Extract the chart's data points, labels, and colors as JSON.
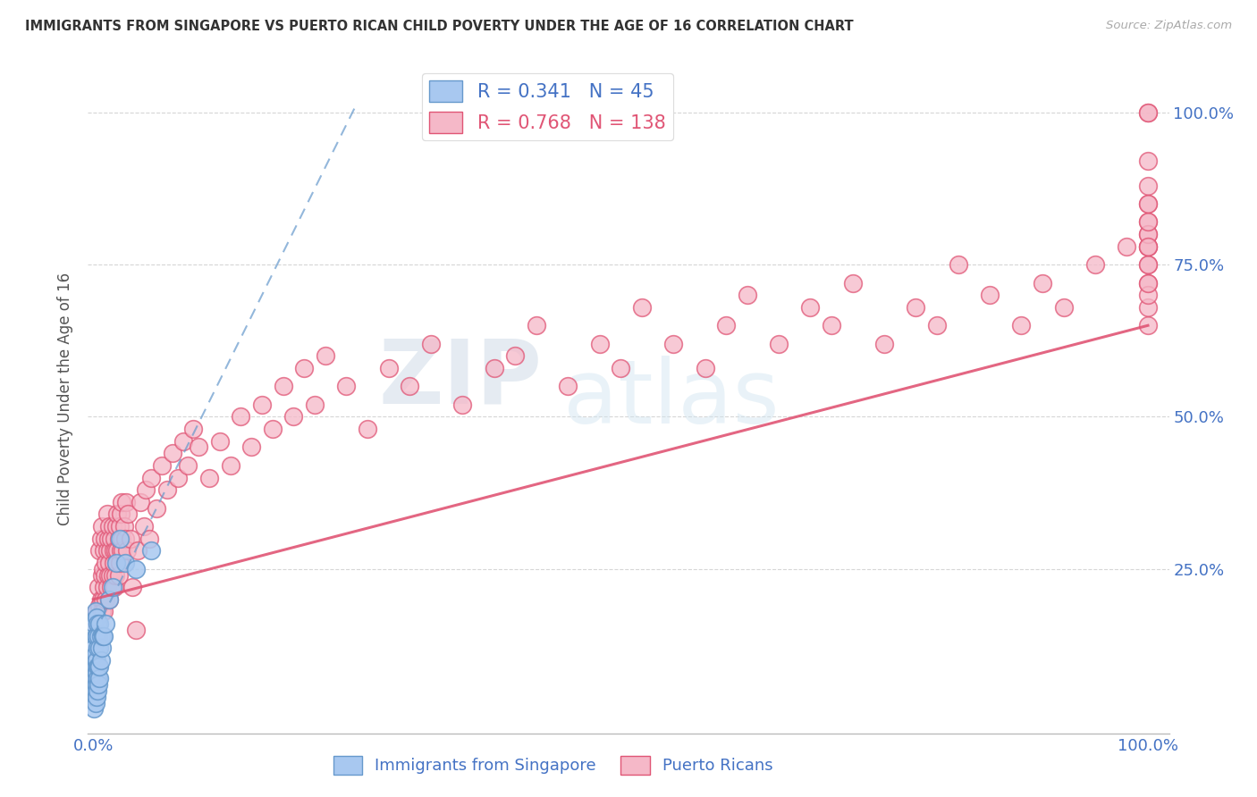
{
  "title": "IMMIGRANTS FROM SINGAPORE VS PUERTO RICAN CHILD POVERTY UNDER THE AGE OF 16 CORRELATION CHART",
  "source": "Source: ZipAtlas.com",
  "ylabel": "Child Poverty Under the Age of 16",
  "legend_blue_r": "0.341",
  "legend_blue_n": "45",
  "legend_pink_r": "0.768",
  "legend_pink_n": "138",
  "blue_color": "#a8c8f0",
  "pink_color": "#f5b8c8",
  "blue_line_color": "#6699cc",
  "pink_line_color": "#e05575",
  "title_color": "#333333",
  "axis_label_color": "#4472c4",
  "grid_color": "#cccccc",
  "background_color": "#ffffff",
  "watermark_zip": "ZIP",
  "watermark_atlas": "atlas",
  "blue_points_x": [
    0.001,
    0.001,
    0.001,
    0.001,
    0.001,
    0.001,
    0.001,
    0.002,
    0.002,
    0.002,
    0.002,
    0.002,
    0.002,
    0.002,
    0.003,
    0.003,
    0.003,
    0.003,
    0.003,
    0.003,
    0.004,
    0.004,
    0.004,
    0.004,
    0.004,
    0.005,
    0.005,
    0.005,
    0.006,
    0.006,
    0.006,
    0.006,
    0.007,
    0.007,
    0.008,
    0.009,
    0.01,
    0.012,
    0.015,
    0.018,
    0.022,
    0.025,
    0.03,
    0.04,
    0.055
  ],
  "blue_points_y": [
    0.02,
    0.04,
    0.06,
    0.08,
    0.1,
    0.12,
    0.16,
    0.03,
    0.05,
    0.07,
    0.09,
    0.11,
    0.14,
    0.18,
    0.04,
    0.06,
    0.08,
    0.1,
    0.14,
    0.17,
    0.05,
    0.07,
    0.09,
    0.12,
    0.16,
    0.06,
    0.09,
    0.14,
    0.07,
    0.09,
    0.12,
    0.16,
    0.1,
    0.14,
    0.12,
    0.14,
    0.14,
    0.16,
    0.2,
    0.22,
    0.26,
    0.3,
    0.26,
    0.25,
    0.28
  ],
  "pink_points_x": [
    0.003,
    0.004,
    0.005,
    0.006,
    0.006,
    0.007,
    0.007,
    0.008,
    0.008,
    0.008,
    0.009,
    0.009,
    0.01,
    0.01,
    0.01,
    0.011,
    0.011,
    0.012,
    0.012,
    0.013,
    0.013,
    0.013,
    0.014,
    0.014,
    0.015,
    0.015,
    0.015,
    0.016,
    0.016,
    0.017,
    0.017,
    0.018,
    0.018,
    0.019,
    0.019,
    0.02,
    0.02,
    0.021,
    0.021,
    0.022,
    0.022,
    0.023,
    0.023,
    0.024,
    0.024,
    0.025,
    0.025,
    0.026,
    0.026,
    0.027,
    0.027,
    0.028,
    0.029,
    0.03,
    0.031,
    0.032,
    0.033,
    0.035,
    0.037,
    0.04,
    0.042,
    0.045,
    0.048,
    0.05,
    0.053,
    0.055,
    0.06,
    0.065,
    0.07,
    0.075,
    0.08,
    0.085,
    0.09,
    0.095,
    0.1,
    0.11,
    0.12,
    0.13,
    0.14,
    0.15,
    0.16,
    0.17,
    0.18,
    0.19,
    0.2,
    0.21,
    0.22,
    0.24,
    0.26,
    0.28,
    0.3,
    0.32,
    0.35,
    0.38,
    0.4,
    0.42,
    0.45,
    0.48,
    0.5,
    0.52,
    0.55,
    0.58,
    0.6,
    0.62,
    0.65,
    0.68,
    0.7,
    0.72,
    0.75,
    0.78,
    0.8,
    0.82,
    0.85,
    0.88,
    0.9,
    0.92,
    0.95,
    0.98,
    1.0,
    1.0,
    1.0,
    1.0,
    1.0,
    1.0,
    1.0,
    1.0,
    1.0,
    1.0,
    1.0,
    1.0,
    1.0,
    1.0,
    1.0,
    1.0,
    1.0,
    1.0,
    1.0,
    1.0
  ],
  "pink_points_y": [
    0.18,
    0.16,
    0.22,
    0.19,
    0.28,
    0.2,
    0.3,
    0.18,
    0.24,
    0.32,
    0.2,
    0.25,
    0.18,
    0.22,
    0.28,
    0.24,
    0.3,
    0.2,
    0.26,
    0.22,
    0.28,
    0.34,
    0.24,
    0.3,
    0.2,
    0.26,
    0.32,
    0.24,
    0.28,
    0.22,
    0.3,
    0.24,
    0.32,
    0.26,
    0.28,
    0.22,
    0.3,
    0.24,
    0.28,
    0.26,
    0.32,
    0.28,
    0.34,
    0.24,
    0.3,
    0.26,
    0.32,
    0.28,
    0.34,
    0.3,
    0.36,
    0.28,
    0.32,
    0.3,
    0.36,
    0.28,
    0.34,
    0.3,
    0.22,
    0.15,
    0.28,
    0.36,
    0.32,
    0.38,
    0.3,
    0.4,
    0.35,
    0.42,
    0.38,
    0.44,
    0.4,
    0.46,
    0.42,
    0.48,
    0.45,
    0.4,
    0.46,
    0.42,
    0.5,
    0.45,
    0.52,
    0.48,
    0.55,
    0.5,
    0.58,
    0.52,
    0.6,
    0.55,
    0.48,
    0.58,
    0.55,
    0.62,
    0.52,
    0.58,
    0.6,
    0.65,
    0.55,
    0.62,
    0.58,
    0.68,
    0.62,
    0.58,
    0.65,
    0.7,
    0.62,
    0.68,
    0.65,
    0.72,
    0.62,
    0.68,
    0.65,
    0.75,
    0.7,
    0.65,
    0.72,
    0.68,
    0.75,
    0.78,
    0.65,
    0.72,
    0.68,
    0.75,
    0.7,
    0.8,
    0.72,
    0.78,
    0.75,
    0.82,
    0.78,
    0.85,
    0.8,
    0.88,
    0.82,
    1.0,
    1.0,
    0.92,
    0.85,
    0.78
  ]
}
